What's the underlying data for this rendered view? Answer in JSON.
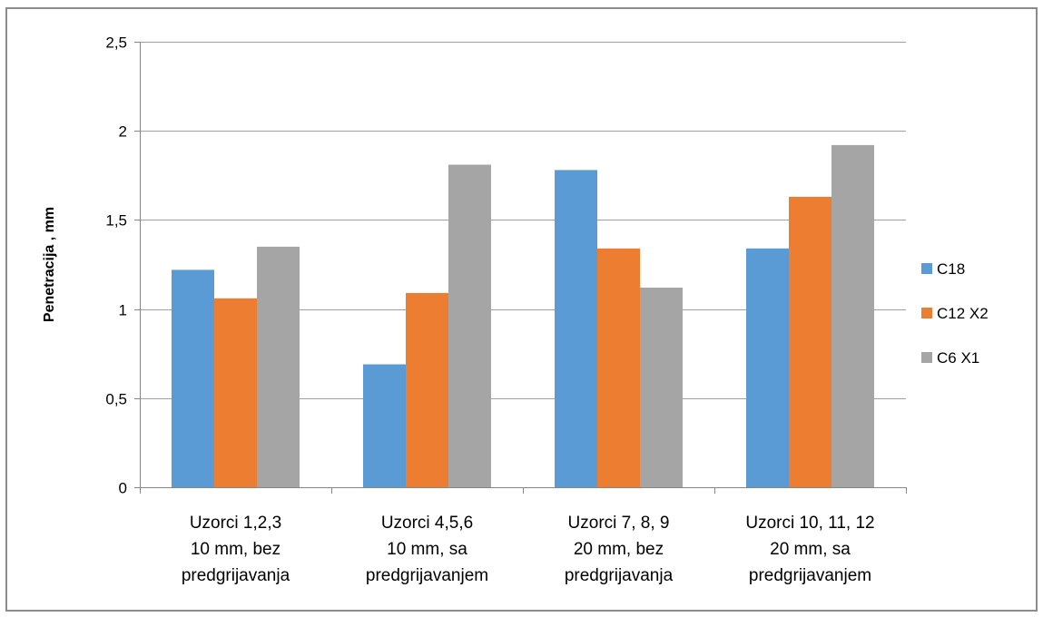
{
  "chart_data": {
    "type": "bar",
    "title": "",
    "xlabel": "",
    "ylabel": "Penetracija , mm",
    "ylim": [
      0,
      2.5
    ],
    "yticks": [
      0,
      0.5,
      1,
      1.5,
      2,
      2.5
    ],
    "ytick_labels": [
      "0",
      "0,5",
      "1",
      "1,5",
      "2",
      "2,5"
    ],
    "grid": true,
    "legend_position": "right",
    "categories": [
      [
        "Uzorci 1,2,3",
        "10 mm, bez",
        "predgrijavanja"
      ],
      [
        "Uzorci 4,5,6",
        "10 mm, sa",
        "predgrijavanjem"
      ],
      [
        "Uzorci 7, 8, 9",
        "20 mm, bez",
        "predgrijavanja"
      ],
      [
        "Uzorci 10, 11, 12",
        "20 mm, sa",
        "predgrijavanjem"
      ]
    ],
    "series": [
      {
        "name": "C18",
        "color": "#5b9bd5",
        "values": [
          1.22,
          0.69,
          1.78,
          1.34
        ]
      },
      {
        "name": "C12 X2",
        "color": "#ed7d31",
        "values": [
          1.06,
          1.09,
          1.34,
          1.63
        ]
      },
      {
        "name": "C6 X1",
        "color": "#a5a5a5",
        "values": [
          1.35,
          1.81,
          1.12,
          1.92
        ]
      }
    ]
  }
}
